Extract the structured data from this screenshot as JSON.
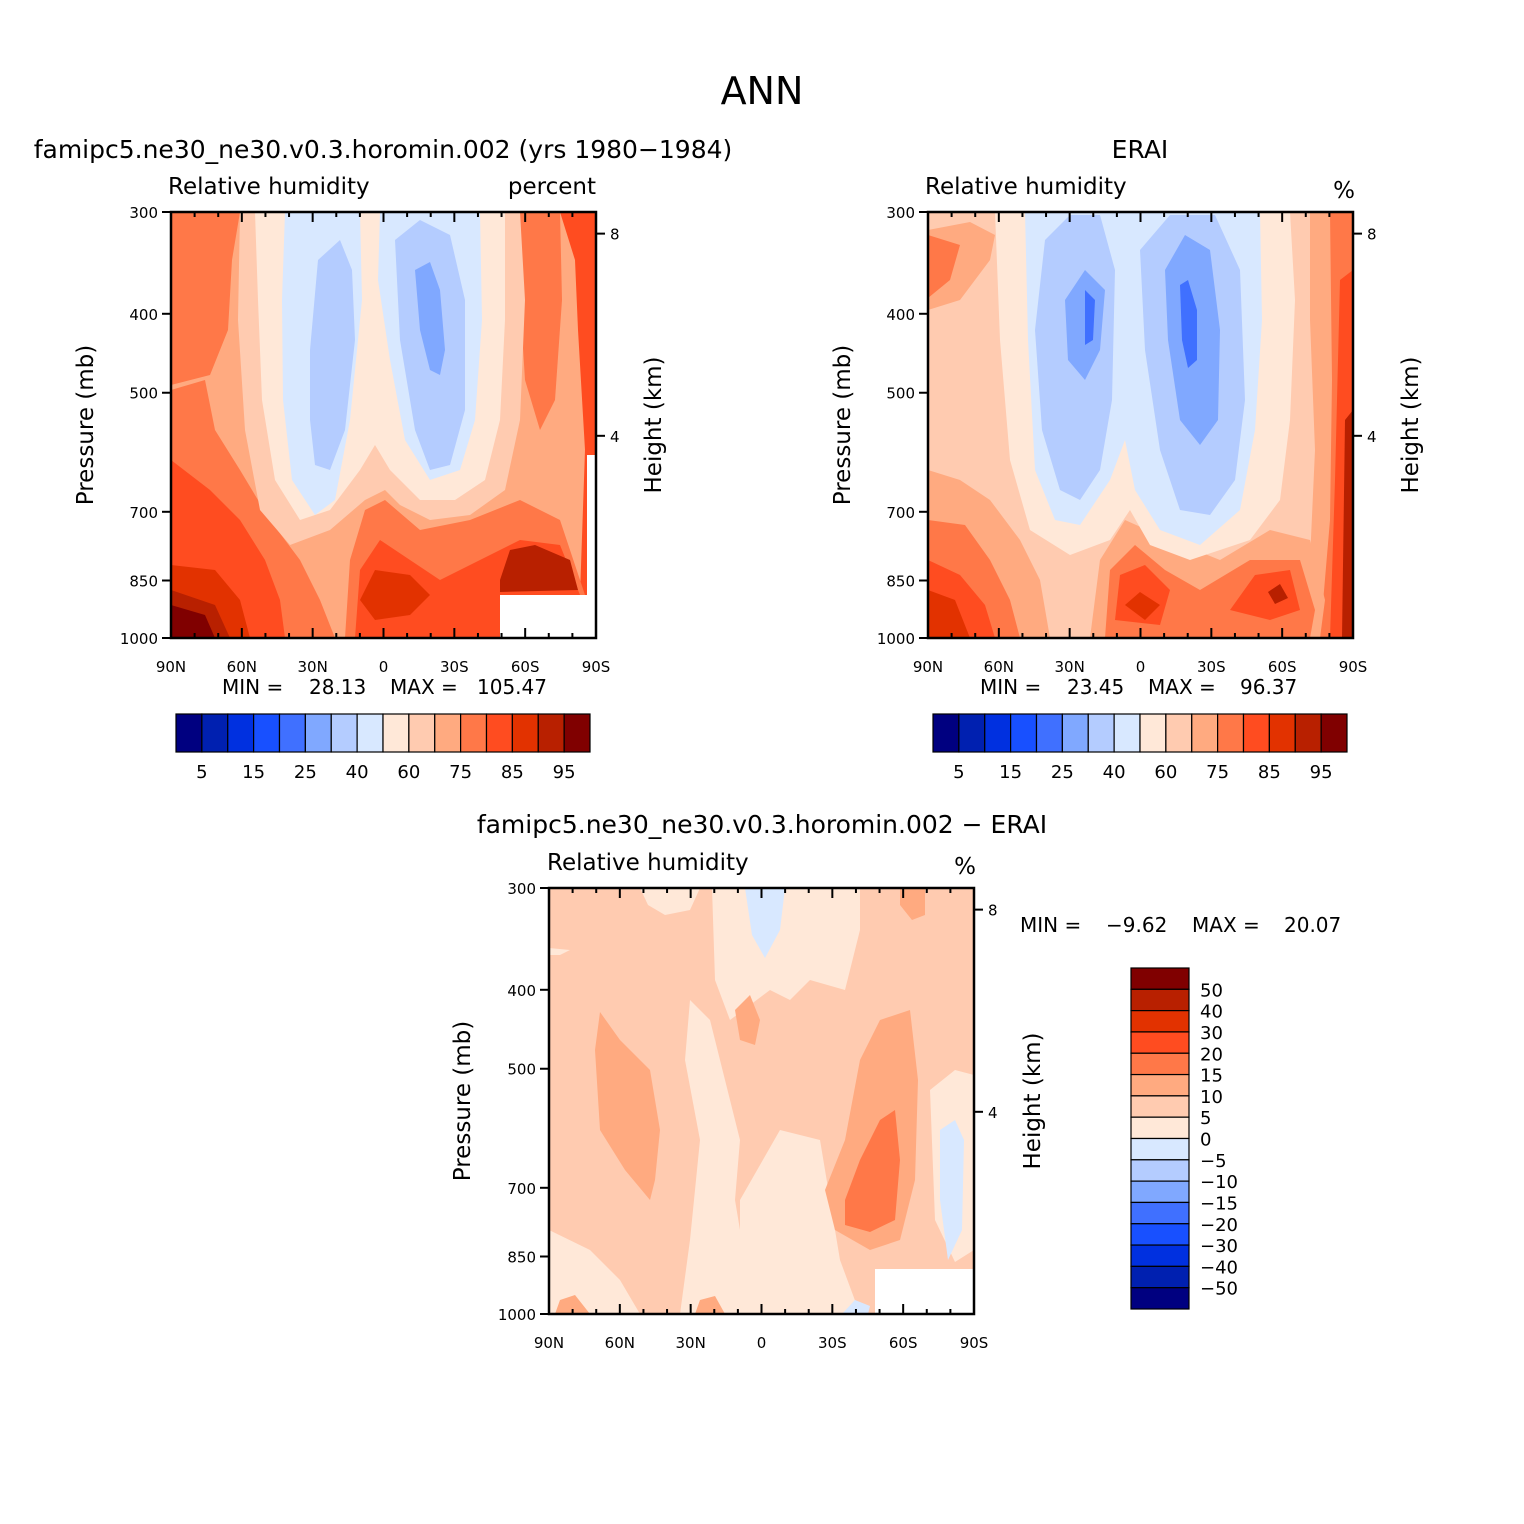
{
  "figure": {
    "title": "ANN"
  },
  "palette": {
    "diverging": [
      "#000080",
      "#0020b0",
      "#0030e0",
      "#1850ff",
      "#4070ff",
      "#80a8ff",
      "#b4ccff",
      "#d8e8ff",
      "#ffe8d8",
      "#ffcbb0",
      "#ffaa80",
      "#ff7848",
      "#ff4c20",
      "#e23200",
      "#b82000",
      "#800000"
    ],
    "level_tick_labels": [
      "5",
      "15",
      "25",
      "40",
      "60",
      "75",
      "85",
      "95"
    ],
    "diff_tick_labels": [
      "50",
      "40",
      "30",
      "20",
      "15",
      "10",
      "5",
      "0",
      "−5",
      "−10",
      "−15",
      "−20",
      "−30",
      "−40",
      "−50"
    ]
  },
  "panels": [
    {
      "id": "model",
      "title": "famipc5.ne30_ne30.v0.3.horomin.002 (yrs 1980−1984)",
      "left_label": "Relative humidity",
      "right_label": "percent",
      "stats": {
        "min_label": "MIN =",
        "min": "28.13",
        "max_label": "MAX =",
        "max": "105.47"
      }
    },
    {
      "id": "obs",
      "title": "ERAI",
      "left_label": "Relative humidity",
      "right_label": "%",
      "stats": {
        "min_label": "MIN =",
        "min": "23.45",
        "max_label": "MAX =",
        "max": "96.37"
      }
    },
    {
      "id": "diff",
      "title": "famipc5.ne30_ne30.v0.3.horomin.002 − ERAI",
      "left_label": "Relative humidity",
      "right_label": "%",
      "stats": {
        "min_label": "MIN =",
        "min": "−9.62",
        "max_label": "MAX =",
        "max": "20.07"
      }
    }
  ],
  "chart_data": [
    {
      "type": "heatmap",
      "title": "famipc5.ne30_ne30.v0.3.horomin.002 (yrs 1980−1984)",
      "subtitle": "Relative humidity",
      "units": "percent",
      "xlabel": "",
      "ylabel": "Pressure (mb)",
      "y2label": "Height (km)",
      "x_ticks": [
        "90N",
        "60N",
        "30N",
        "0",
        "30S",
        "60S",
        "90S"
      ],
      "y_ticks": [
        300,
        400,
        500,
        700,
        850,
        1000
      ],
      "y2_ticks": [
        8,
        4
      ],
      "y_scale": "log",
      "ylim": [
        1000,
        300
      ],
      "xlim": [
        90,
        -90
      ],
      "levels": [
        5,
        10,
        15,
        20,
        25,
        30,
        40,
        50,
        60,
        70,
        75,
        80,
        85,
        90,
        95
      ],
      "min": 28.13,
      "max": 105.47
    },
    {
      "type": "heatmap",
      "title": "ERAI",
      "subtitle": "Relative humidity",
      "units": "%",
      "xlabel": "",
      "ylabel": "Pressure (mb)",
      "y2label": "Height (km)",
      "x_ticks": [
        "90N",
        "60N",
        "30N",
        "0",
        "30S",
        "60S",
        "90S"
      ],
      "y_ticks": [
        300,
        400,
        500,
        700,
        850,
        1000
      ],
      "y2_ticks": [
        8,
        4
      ],
      "y_scale": "log",
      "ylim": [
        1000,
        300
      ],
      "xlim": [
        90,
        -90
      ],
      "levels": [
        5,
        10,
        15,
        20,
        25,
        30,
        40,
        50,
        60,
        70,
        75,
        80,
        85,
        90,
        95
      ],
      "min": 23.45,
      "max": 96.37
    },
    {
      "type": "heatmap",
      "title": "famipc5.ne30_ne30.v0.3.horomin.002 − ERAI",
      "subtitle": "Relative humidity",
      "units": "%",
      "xlabel": "",
      "ylabel": "Pressure (mb)",
      "y2label": "Height (km)",
      "x_ticks": [
        "90N",
        "60N",
        "30N",
        "0",
        "30S",
        "60S",
        "90S"
      ],
      "y_ticks": [
        300,
        400,
        500,
        700,
        850,
        1000
      ],
      "y2_ticks": [
        8,
        4
      ],
      "y_scale": "log",
      "ylim": [
        1000,
        300
      ],
      "xlim": [
        90,
        -90
      ],
      "levels": [
        -50,
        -40,
        -30,
        -20,
        -15,
        -10,
        -5,
        0,
        5,
        10,
        15,
        20,
        30,
        40,
        50
      ],
      "min": -9.62,
      "max": 20.07
    }
  ]
}
